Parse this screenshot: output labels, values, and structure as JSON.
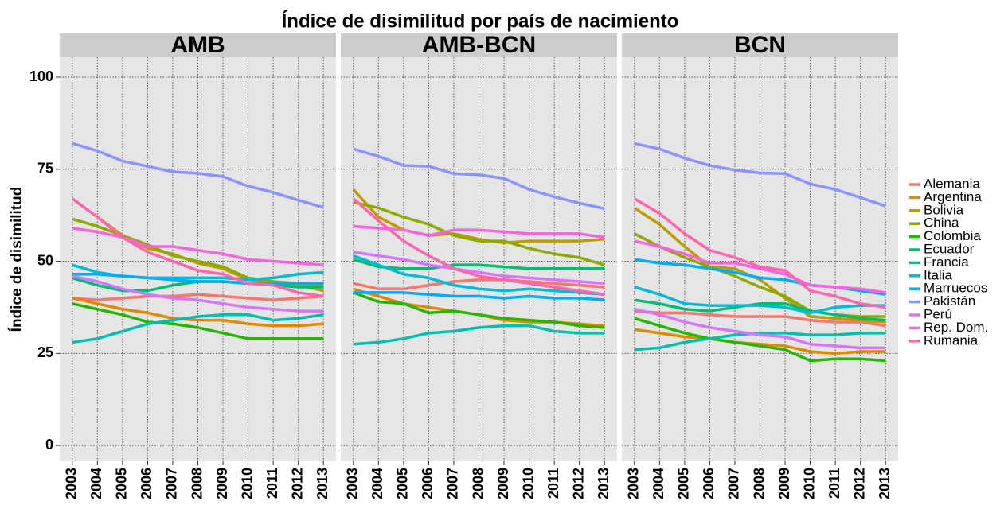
{
  "title": "Índice de disimilitud por país de nacimiento",
  "y_label": "Índice de disimilitud",
  "chart_data": [
    {
      "type": "line",
      "title": "AMB",
      "x": [
        2003,
        2004,
        2005,
        2006,
        2007,
        2008,
        2009,
        2010,
        2011,
        2012,
        2013
      ],
      "xlim": [
        2002.5,
        2013.5
      ],
      "xticks": [
        2003,
        2004,
        2005,
        2006,
        2007,
        2008,
        2009,
        2010,
        2011,
        2012,
        2013
      ],
      "ylim": [
        -4.3,
        105.4
      ],
      "yticks": [
        0,
        25,
        50,
        75,
        100
      ],
      "grid": true,
      "legend": "right",
      "series": [
        {
          "name": "Alemania",
          "color": "#F8766D",
          "values": [
            40,
            39.5,
            40,
            40.5,
            40.5,
            41,
            40.5,
            40,
            39.5,
            40,
            40.5
          ]
        },
        {
          "name": "Argentina",
          "color": "#E18A00",
          "values": [
            40,
            38.5,
            37,
            36,
            34.5,
            34,
            34,
            33,
            32.5,
            32.5,
            33
          ]
        },
        {
          "name": "Bolivia",
          "color": "#BE9C00",
          "values": [
            67,
            62,
            57,
            53.5,
            52,
            49.5,
            48,
            45,
            44,
            43.5,
            42
          ]
        },
        {
          "name": "China",
          "color": "#8CAB00",
          "values": [
            61.5,
            59.5,
            57,
            54.5,
            51.5,
            50,
            48.5,
            45.5,
            44.5,
            44,
            43.5
          ]
        },
        {
          "name": "Colombia",
          "color": "#24B700",
          "values": [
            38.5,
            37,
            35.5,
            33.5,
            33,
            32,
            30.5,
            29,
            29,
            29,
            29
          ]
        },
        {
          "name": "Ecuador",
          "color": "#00BE70",
          "values": [
            45.5,
            43.5,
            42,
            42,
            43.5,
            44.5,
            44.5,
            44,
            43.5,
            43,
            43
          ]
        },
        {
          "name": "Francia",
          "color": "#00C1AB",
          "values": [
            28,
            29,
            31,
            33,
            34,
            35,
            35.5,
            35.5,
            34,
            34.5,
            35.5
          ]
        },
        {
          "name": "Italia",
          "color": "#00BBDA",
          "values": [
            49,
            47,
            46,
            45.5,
            45.5,
            45.5,
            45.5,
            45,
            45.5,
            46.5,
            47
          ]
        },
        {
          "name": "Marruecos",
          "color": "#00ACFC",
          "values": [
            46.5,
            46.5,
            46,
            45.5,
            45,
            44.5,
            44.5,
            44,
            44,
            44,
            44
          ]
        },
        {
          "name": "Pakistán",
          "color": "#8B93FF",
          "values": [
            82,
            80,
            77.2,
            75.8,
            74.3,
            73.9,
            73,
            70.4,
            68.7,
            66.6,
            64.6
          ]
        },
        {
          "name": "Perú",
          "color": "#D575FE",
          "values": [
            46,
            44.5,
            42.5,
            41,
            40,
            39.5,
            38.5,
            37.5,
            37,
            36.5,
            36.5
          ]
        },
        {
          "name": "Rep. Dom.",
          "color": "#F962DD",
          "values": [
            59,
            58,
            56.5,
            54,
            54,
            53,
            52,
            50.5,
            50,
            49.5,
            49
          ]
        },
        {
          "name": "Rumania",
          "color": "#FF65AC",
          "values": [
            67,
            62,
            56.5,
            52.5,
            50,
            47.5,
            46.5,
            44,
            43.5,
            41.5,
            40.5
          ]
        }
      ]
    },
    {
      "type": "line",
      "title": "AMB-BCN",
      "x": [
        2003,
        2004,
        2005,
        2006,
        2007,
        2008,
        2009,
        2010,
        2011,
        2012,
        2013
      ],
      "xlim": [
        2002.5,
        2013.5
      ],
      "xticks": [
        2003,
        2004,
        2005,
        2006,
        2007,
        2008,
        2009,
        2010,
        2011,
        2012,
        2013
      ],
      "ylim": [
        -4.3,
        105.4
      ],
      "yticks": [
        0,
        25,
        50,
        75,
        100
      ],
      "grid": true,
      "series": [
        {
          "name": "Alemania",
          "color": "#F8766D",
          "values": [
            44,
            42.5,
            42.5,
            43.5,
            44.5,
            45,
            45,
            44.5,
            44,
            43.5,
            43
          ]
        },
        {
          "name": "Argentina",
          "color": "#E18A00",
          "values": [
            42.5,
            40.5,
            38.5,
            37.5,
            36.5,
            35.5,
            34,
            33.5,
            33.5,
            33,
            32.5
          ]
        },
        {
          "name": "Bolivia",
          "color": "#BE9C00",
          "values": [
            69.5,
            62,
            58.5,
            57,
            57.5,
            56,
            55,
            55.5,
            55.5,
            55.5,
            56
          ]
        },
        {
          "name": "China",
          "color": "#8CAB00",
          "values": [
            66,
            64.5,
            62,
            60,
            57,
            55.5,
            55.5,
            53.5,
            52,
            51,
            49
          ]
        },
        {
          "name": "Colombia",
          "color": "#24B700",
          "values": [
            41.5,
            39,
            38.5,
            36,
            36.5,
            35.5,
            34.5,
            34,
            33.5,
            32.5,
            32
          ]
        },
        {
          "name": "Ecuador",
          "color": "#00BE70",
          "values": [
            50.5,
            48.5,
            48,
            48,
            49,
            49,
            48.5,
            48,
            48,
            48,
            48
          ]
        },
        {
          "name": "Francia",
          "color": "#00C1AB",
          "values": [
            27.5,
            28,
            29,
            30.5,
            31,
            32,
            32.5,
            32.5,
            31,
            30.5,
            30.5
          ]
        },
        {
          "name": "Italia",
          "color": "#00BBDA",
          "values": [
            51.5,
            49,
            46.5,
            45.5,
            43.5,
            42.5,
            42,
            42.5,
            42,
            41.5,
            41
          ]
        },
        {
          "name": "Marruecos",
          "color": "#00ACFC",
          "values": [
            41.5,
            41.5,
            41.5,
            41,
            40.5,
            40.5,
            40,
            40.5,
            40,
            40,
            39.5
          ]
        },
        {
          "name": "Pakistán",
          "color": "#8B93FF",
          "values": [
            80.5,
            78.5,
            76,
            75.8,
            73.8,
            73.5,
            72.5,
            69.5,
            67.5,
            65.8,
            64.3
          ]
        },
        {
          "name": "Perú",
          "color": "#D575FE",
          "values": [
            52.5,
            51.5,
            50.5,
            49,
            48,
            47,
            46,
            45.5,
            45,
            44.5,
            44
          ]
        },
        {
          "name": "Rep. Dom.",
          "color": "#F962DD",
          "values": [
            59.5,
            59,
            58.5,
            57,
            58.5,
            58.5,
            58,
            57.5,
            57.5,
            57.5,
            56.5
          ]
        },
        {
          "name": "Rumania",
          "color": "#FF65AC",
          "values": [
            67,
            61,
            55.5,
            51.5,
            48,
            46,
            45,
            44,
            43,
            42,
            41
          ]
        }
      ]
    },
    {
      "type": "line",
      "title": "BCN",
      "x": [
        2003,
        2004,
        2005,
        2006,
        2007,
        2008,
        2009,
        2010,
        2011,
        2012,
        2013
      ],
      "xlim": [
        2002.5,
        2013.5
      ],
      "xticks": [
        2003,
        2004,
        2005,
        2006,
        2007,
        2008,
        2009,
        2010,
        2011,
        2012,
        2013
      ],
      "ylim": [
        -4.3,
        105.4
      ],
      "yticks": [
        0,
        25,
        50,
        75,
        100
      ],
      "grid": true,
      "series": [
        {
          "name": "Alemania",
          "color": "#F8766D",
          "values": [
            36.5,
            36,
            36,
            35.5,
            35,
            35,
            35,
            34,
            33.5,
            33.5,
            32.5
          ]
        },
        {
          "name": "Argentina",
          "color": "#E18A00",
          "values": [
            31.5,
            30.5,
            29.5,
            29,
            28,
            27.5,
            27,
            25.5,
            25,
            25.5,
            25.5
          ]
        },
        {
          "name": "Bolivia",
          "color": "#BE9C00",
          "values": [
            64.5,
            60,
            54,
            48.5,
            48,
            45,
            40,
            35,
            34.5,
            34,
            33.5
          ]
        },
        {
          "name": "China",
          "color": "#8CAB00",
          "values": [
            57.5,
            54,
            51,
            48.5,
            46,
            43,
            40.5,
            36.5,
            35.5,
            35,
            35
          ]
        },
        {
          "name": "Colombia",
          "color": "#24B700",
          "values": [
            34.5,
            32.5,
            30.5,
            29,
            28,
            27,
            26,
            23,
            23.5,
            23.5,
            23
          ]
        },
        {
          "name": "Ecuador",
          "color": "#00BE70",
          "values": [
            39.5,
            38.5,
            37,
            36.5,
            37.5,
            38.5,
            38.5,
            36.5,
            35.5,
            34.5,
            34
          ]
        },
        {
          "name": "Francia",
          "color": "#00C1AB",
          "values": [
            26,
            26.5,
            28,
            29,
            30,
            30.5,
            30.5,
            30,
            30,
            30.5,
            30.5
          ]
        },
        {
          "name": "Italia",
          "color": "#00BBDA",
          "values": [
            43,
            41,
            38.5,
            38,
            38,
            38,
            37.5,
            36,
            37.5,
            38,
            38
          ]
        },
        {
          "name": "Marruecos",
          "color": "#00ACFC",
          "values": [
            50.5,
            49.5,
            49,
            48,
            47,
            45.5,
            45,
            43.5,
            43,
            42,
            41
          ]
        },
        {
          "name": "Pakistán",
          "color": "#8B93FF",
          "values": [
            82,
            80.5,
            78,
            76,
            74.8,
            74,
            73.8,
            71,
            69.5,
            67.3,
            65
          ]
        },
        {
          "name": "Perú",
          "color": "#D575FE",
          "values": [
            37,
            35.5,
            33.5,
            32,
            31,
            30,
            29.5,
            27.5,
            27,
            26.5,
            26.5
          ]
        },
        {
          "name": "Rep. Dom.",
          "color": "#F962DD",
          "values": [
            55.5,
            54,
            52,
            49.5,
            49.5,
            48,
            46.5,
            43.5,
            43,
            42.5,
            41.5
          ]
        },
        {
          "name": "Rumania",
          "color": "#FF65AC",
          "values": [
            67,
            63,
            57.5,
            53,
            51,
            48.5,
            47.5,
            42,
            40.5,
            38.5,
            37.5
          ]
        }
      ]
    }
  ]
}
